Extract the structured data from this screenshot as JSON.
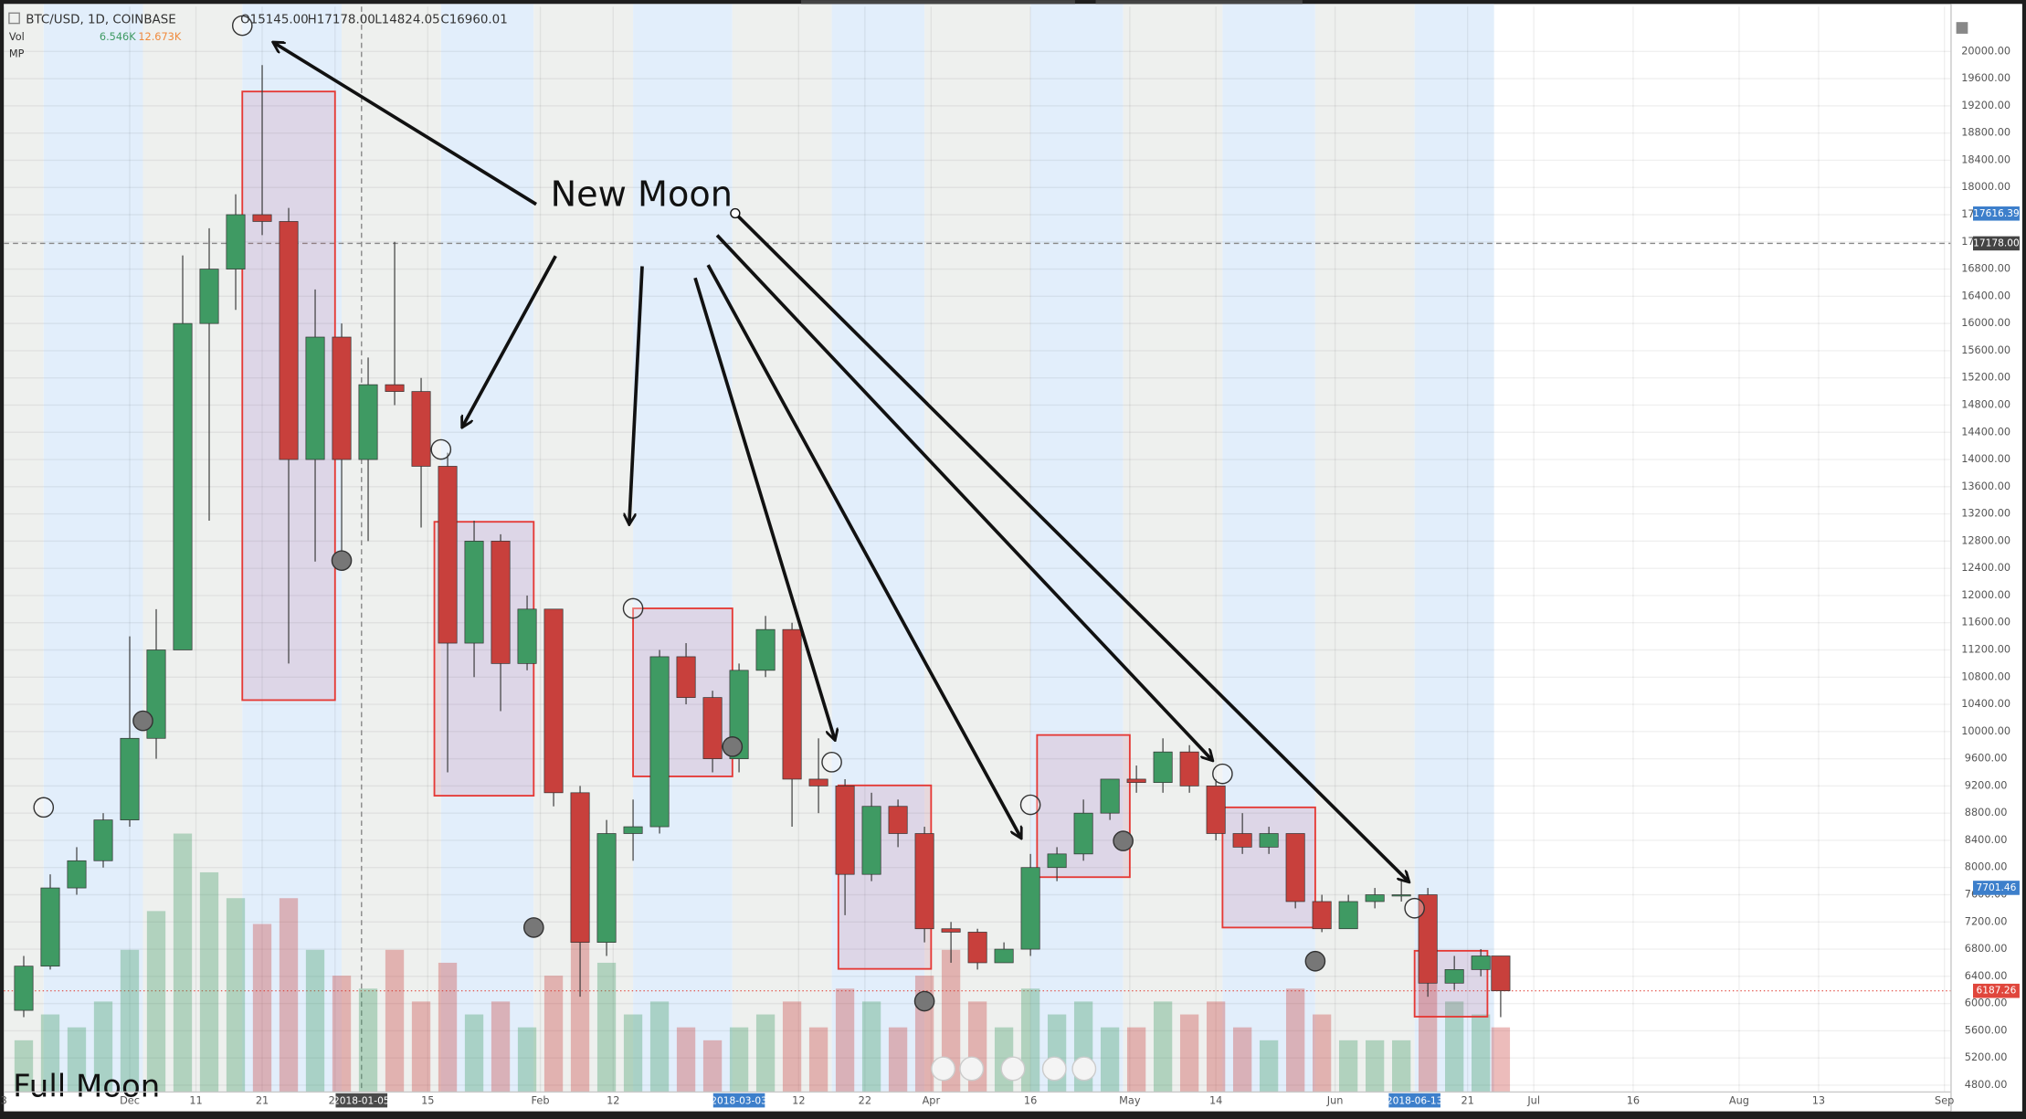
{
  "header": {
    "symbol": "BTC/USD, 1D, COINBASE",
    "open": "O15145.00",
    "high": "H17178.00",
    "low": "L14824.05",
    "close": "C16960.01",
    "vol_label": "Vol",
    "vol_value": "6.546K",
    "vol_ma": "12.673K",
    "mp_label": "MP"
  },
  "chart_data": {
    "type": "candlestick",
    "xlim": [
      "2017-11-12",
      "2018-09-02"
    ],
    "ylim": [
      4700,
      20660
    ],
    "x": [
      "2017-11-13",
      "2017-11-17",
      "2017-11-21",
      "2017-11-25",
      "2017-11-29",
      "2017-12-03",
      "2017-12-07",
      "2017-12-11",
      "2017-12-15",
      "2017-12-19",
      "2017-12-23",
      "2017-12-27",
      "2017-12-31",
      "2018-01-04",
      "2018-01-08",
      "2018-01-12",
      "2018-01-16",
      "2018-01-20",
      "2018-01-24",
      "2018-01-28",
      "2018-02-01",
      "2018-02-05",
      "2018-02-09",
      "2018-02-13",
      "2018-02-17",
      "2018-02-21",
      "2018-02-25",
      "2018-03-01",
      "2018-03-05",
      "2018-03-09",
      "2018-03-13",
      "2018-03-17",
      "2018-03-21",
      "2018-03-25",
      "2018-03-29",
      "2018-04-02",
      "2018-04-06",
      "2018-04-10",
      "2018-04-14",
      "2018-04-18",
      "2018-04-22",
      "2018-04-26",
      "2018-04-30",
      "2018-05-04",
      "2018-05-08",
      "2018-05-12",
      "2018-05-16",
      "2018-05-20",
      "2018-05-24",
      "2018-05-28",
      "2018-06-01",
      "2018-06-05",
      "2018-06-09",
      "2018-06-13",
      "2018-06-17",
      "2018-06-21",
      "2018-06-24"
    ],
    "open": [
      5900,
      6550,
      7700,
      8100,
      8700,
      9900,
      11200,
      16000,
      16800,
      17600,
      17500,
      14000,
      15800,
      14000,
      15100,
      15000,
      13900,
      11300,
      12800,
      11000,
      11800,
      9100,
      6900,
      8500,
      8600,
      11100,
      10500,
      9600,
      10900,
      11500,
      9300,
      9200,
      7900,
      8900,
      8500,
      7100,
      7050,
      6600,
      6800,
      8000,
      8200,
      8800,
      9300,
      9250,
      9700,
      9200,
      8500,
      8300,
      8500,
      7500,
      7100,
      7500,
      7600,
      7600,
      6300,
      6500,
      6700
    ],
    "high": [
      6700,
      7900,
      8300,
      8800,
      11400,
      11800,
      17000,
      17400,
      17900,
      19800,
      17700,
      16500,
      16000,
      15500,
      17200,
      15200,
      14100,
      13100,
      12900,
      12000,
      11800,
      9200,
      8700,
      9000,
      11200,
      11300,
      10600,
      11000,
      11700,
      11600,
      9900,
      9300,
      9100,
      9000,
      8600,
      7200,
      7100,
      6900,
      8200,
      8300,
      9000,
      9300,
      9500,
      9900,
      9800,
      9300,
      8800,
      8600,
      8500,
      7600,
      7600,
      7700,
      7800,
      7700,
      6700,
      6800,
      6700
    ],
    "low": [
      5800,
      6500,
      7600,
      8000,
      8600,
      9600,
      11200,
      13100,
      16200,
      17300,
      11000,
      12500,
      12600,
      12800,
      14800,
      13000,
      9400,
      10800,
      10300,
      10900,
      8900,
      6100,
      6700,
      8100,
      8500,
      10400,
      9400,
      9400,
      10800,
      8600,
      8800,
      7300,
      7800,
      8300,
      6900,
      6600,
      6500,
      6600,
      6700,
      7800,
      8100,
      8700,
      9100,
      9100,
      9100,
      8400,
      8200,
      8200,
      7400,
      7050,
      7100,
      7400,
      7500,
      6100,
      6200,
      6400,
      5800
    ],
    "close": [
      6550,
      7700,
      8100,
      8700,
      9900,
      11200,
      16000,
      16800,
      17600,
      17500,
      14000,
      15800,
      14000,
      15100,
      15000,
      13900,
      11300,
      12800,
      11000,
      11800,
      9100,
      6900,
      8500,
      8600,
      11100,
      10500,
      9600,
      10900,
      11500,
      9300,
      9200,
      7900,
      8900,
      8500,
      7100,
      7050,
      6600,
      6800,
      8000,
      8200,
      8800,
      9300,
      9250,
      9700,
      9200,
      8500,
      8300,
      8500,
      7500,
      7100,
      7500,
      7600,
      7600,
      6300,
      6500,
      6700,
      6187
    ],
    "volume": [
      8,
      12,
      10,
      14,
      22,
      28,
      40,
      34,
      30,
      26,
      30,
      22,
      18,
      16,
      22,
      14,
      20,
      12,
      14,
      10,
      18,
      30,
      20,
      12,
      14,
      10,
      8,
      10,
      12,
      14,
      10,
      16,
      14,
      10,
      18,
      22,
      14,
      10,
      16,
      12,
      14,
      10,
      10,
      14,
      12,
      14,
      10,
      8,
      16,
      12,
      8,
      8,
      8,
      22,
      14,
      12,
      10
    ],
    "up_color": "#3f9a63",
    "down_color": "#c8403c",
    "yticks": [
      {
        "value": 4800,
        "label": "4800.00"
      },
      {
        "value": 5200,
        "label": "5200.00"
      },
      {
        "value": 5600,
        "label": "5600.00"
      },
      {
        "value": 6000,
        "label": "6000.00"
      },
      {
        "value": 6400,
        "label": "6400.00"
      },
      {
        "value": 6800,
        "label": "6800.00"
      },
      {
        "value": 7200,
        "label": "7200.00"
      },
      {
        "value": 7600,
        "label": "7600.00"
      },
      {
        "value": 8000,
        "label": "8000.00"
      },
      {
        "value": 8400,
        "label": "8400.00"
      },
      {
        "value": 8800,
        "label": "8800.00"
      },
      {
        "value": 9200,
        "label": "9200.00"
      },
      {
        "value": 9600,
        "label": "9600.00"
      },
      {
        "value": 10000,
        "label": "10000.00"
      },
      {
        "value": 10400,
        "label": "10400.00"
      },
      {
        "value": 10800,
        "label": "10800.00"
      },
      {
        "value": 11200,
        "label": "11200.00"
      },
      {
        "value": 11600,
        "label": "11600.00"
      },
      {
        "value": 12000,
        "label": "12000.00"
      },
      {
        "value": 12400,
        "label": "12400.00"
      },
      {
        "value": 12800,
        "label": "12800.00"
      },
      {
        "value": 13200,
        "label": "13200.00"
      },
      {
        "value": 13600,
        "label": "13600.00"
      },
      {
        "value": 14000,
        "label": "14000.00"
      },
      {
        "value": 14400,
        "label": "14400.00"
      },
      {
        "value": 14800,
        "label": "14800.00"
      },
      {
        "value": 15200,
        "label": "15200.00"
      },
      {
        "value": 15600,
        "label": "15600.00"
      },
      {
        "value": 16000,
        "label": "16000.00"
      },
      {
        "value": 16400,
        "label": "16400.00"
      },
      {
        "value": 16800,
        "label": "16800.00"
      },
      {
        "value": 17200,
        "label": "17200.00"
      },
      {
        "value": 17600,
        "label": "17600.00"
      },
      {
        "value": 18000,
        "label": "18000.00"
      },
      {
        "value": 18400,
        "label": "18400.00"
      },
      {
        "value": 18800,
        "label": "18800.00"
      },
      {
        "value": 19200,
        "label": "19200.00"
      },
      {
        "value": 19600,
        "label": "19600.00"
      },
      {
        "value": 20000,
        "label": "20000.00"
      }
    ],
    "xticks": [
      {
        "value": "2017-11-12",
        "label": "3"
      },
      {
        "value": "2017-12-01",
        "label": "Dec"
      },
      {
        "value": "2017-12-11",
        "label": "11"
      },
      {
        "value": "2017-12-21",
        "label": "21"
      },
      {
        "value": "2018-01-01",
        "label": "20"
      },
      {
        "value": "2018-01-15",
        "label": "15"
      },
      {
        "value": "2018-02-01",
        "label": "Feb"
      },
      {
        "value": "2018-02-12",
        "label": "12"
      },
      {
        "value": "2018-03-12",
        "label": "12"
      },
      {
        "value": "2018-03-22",
        "label": "22"
      },
      {
        "value": "2018-04-01",
        "label": "Apr"
      },
      {
        "value": "2018-04-16",
        "label": "16"
      },
      {
        "value": "2018-05-01",
        "label": "May"
      },
      {
        "value": "2018-05-14",
        "label": "14"
      },
      {
        "value": "2018-06-01",
        "label": "Jun"
      },
      {
        "value": "2018-06-21",
        "label": "21"
      },
      {
        "value": "2018-07-01",
        "label": "Jul"
      },
      {
        "value": "2018-07-16",
        "label": "16"
      },
      {
        "value": "2018-08-01",
        "label": "Aug"
      },
      {
        "value": "2018-08-13",
        "label": "13"
      },
      {
        "value": "2018-09-01",
        "label": "Sep"
      }
    ],
    "date_markers": [
      {
        "date": "2018-01-05",
        "color": "#4a4a4a"
      },
      {
        "date": "2018-03-03",
        "color": "#3d7fcb"
      },
      {
        "date": "2018-06-13",
        "color": "#3d7fcb"
      }
    ],
    "price_markers": [
      {
        "value": 17616.39,
        "color": "#3d7fcb"
      },
      {
        "value": 17178,
        "label": "17178.00",
        "color": "#444444"
      },
      {
        "value": 7701.46,
        "color": "#3d7fcb"
      },
      {
        "value": 6187.26,
        "color": "#e0463c"
      }
    ],
    "crosshair": {
      "date": "2018-01-05",
      "value": 17178
    },
    "new_moons": [
      {
        "date": "2017-11-18",
        "price": 8885
      },
      {
        "date": "2017-12-18",
        "price": 20380
      },
      {
        "date": "2018-01-17",
        "price": 14148
      },
      {
        "date": "2018-02-15",
        "price": 11811
      },
      {
        "date": "2018-03-17",
        "price": 9550
      },
      {
        "date": "2018-04-16",
        "price": 8923
      },
      {
        "date": "2018-05-15",
        "price": 9378
      },
      {
        "date": "2018-06-13",
        "price": 7402
      }
    ],
    "full_moons": [
      {
        "date": "2017-12-03",
        "price": 10158
      },
      {
        "date": "2018-01-02",
        "price": 12514
      },
      {
        "date": "2018-01-31",
        "price": 7118
      },
      {
        "date": "2018-03-02",
        "price": 9778
      },
      {
        "date": "2018-03-31",
        "price": 6035
      },
      {
        "date": "2018-04-30",
        "price": 8391
      },
      {
        "date": "2018-05-29",
        "price": 6623
      }
    ],
    "boxes": [
      {
        "start": "2017-12-18",
        "end": "2018-01-01",
        "top": 19411,
        "bottom": 10462
      },
      {
        "start": "2018-01-16",
        "end": "2018-01-31",
        "top": 13084,
        "bottom": 9056
      },
      {
        "start": "2018-02-15",
        "end": "2018-03-02",
        "top": 11811,
        "bottom": 9340
      },
      {
        "start": "2018-03-18",
        "end": "2018-04-01",
        "top": 9208,
        "bottom": 6510
      },
      {
        "start": "2018-04-17",
        "end": "2018-05-01",
        "top": 9949,
        "bottom": 7859
      },
      {
        "start": "2018-05-15",
        "end": "2018-05-29",
        "top": 8885,
        "bottom": 7118
      },
      {
        "start": "2018-06-13",
        "end": "2018-06-24",
        "top": 6776,
        "bottom": 5807
      }
    ],
    "annotations": {
      "new_moon": "New Moon",
      "full_moon": "Full Moon"
    }
  }
}
